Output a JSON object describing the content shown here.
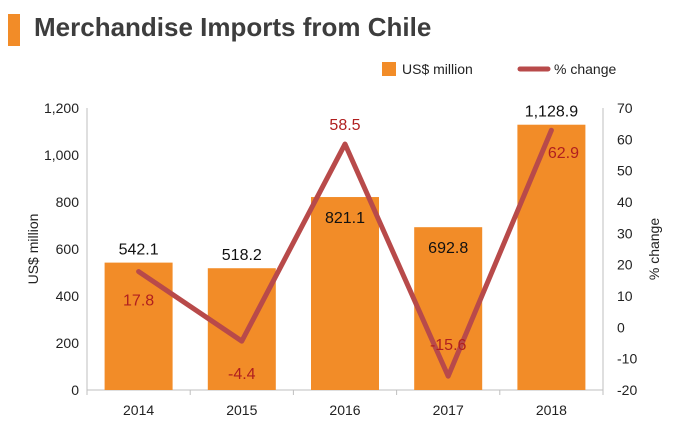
{
  "title": "Merchandise Imports from Chile",
  "colors": {
    "bar": "#f28c28",
    "line": "#b84a4a",
    "line_label": "#b01f1f",
    "title_accent": "#f28c28"
  },
  "chart_data": {
    "type": "bar+line",
    "title": "Merchandise Imports from Chile",
    "categories": [
      "2014",
      "2015",
      "2016",
      "2017",
      "2018"
    ],
    "series": [
      {
        "name": "US$ million",
        "type": "bar",
        "axis": "left",
        "values": [
          542.1,
          518.2,
          821.1,
          692.8,
          1128.9
        ],
        "labels": [
          "542.1",
          "518.2",
          "821.1",
          "692.8",
          "1,128.9"
        ]
      },
      {
        "name": "% change",
        "type": "line",
        "axis": "right",
        "values": [
          17.8,
          -4.4,
          58.5,
          -15.6,
          62.9
        ],
        "labels": [
          "17.8",
          "-4.4",
          "58.5",
          "-15.6",
          "62.9"
        ]
      }
    ],
    "ylabel_left": "US$ million",
    "ylabel_right": "% change",
    "ylim_left": [
      0,
      1200
    ],
    "ylim_right": [
      -20,
      70
    ],
    "left_ticks": [
      "0",
      "200",
      "400",
      "600",
      "800",
      "1,000",
      "1,200"
    ],
    "right_ticks": [
      "-20",
      "-10",
      "0",
      "10",
      "20",
      "30",
      "40",
      "50",
      "60",
      "70"
    ],
    "legend_position": "top-right",
    "grid": false
  }
}
